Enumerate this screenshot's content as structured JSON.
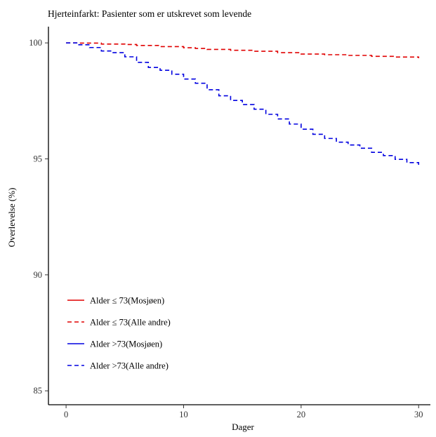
{
  "chart_data": {
    "type": "line",
    "title": "Hjerteinfarkt: Pasienter som er utskrevet som levende",
    "xlabel": "Dager",
    "ylabel": "Overlevelse (%)",
    "xlim": [
      -1.5,
      31
    ],
    "ylim": [
      84.4,
      100.7
    ],
    "xticks": [
      0,
      10,
      20,
      30
    ],
    "yticks": [
      85,
      90,
      95,
      100
    ],
    "grid": false,
    "legend_position": "bottom-left",
    "series": [
      {
        "name": "Alder ≤ 73(Mosjøen)",
        "color": "#e00000",
        "line_style": "solid",
        "x": [],
        "y": []
      },
      {
        "name": "Alder ≤ 73(Alle andre)",
        "color": "#e00000",
        "line_style": "dashed",
        "x": [
          0,
          1,
          3,
          5,
          6,
          8,
          10,
          11,
          12,
          14,
          16,
          18,
          20,
          22,
          24,
          26,
          28,
          30
        ],
        "y": [
          100,
          99.99,
          99.95,
          99.93,
          99.89,
          99.84,
          99.79,
          99.76,
          99.72,
          99.68,
          99.64,
          99.58,
          99.52,
          99.49,
          99.46,
          99.42,
          99.39,
          99.34
        ]
      },
      {
        "name": "Alder >73(Mosjøen)",
        "color": "#0000e0",
        "line_style": "solid",
        "x": [],
        "y": []
      },
      {
        "name": "Alder >73(Alle andre)",
        "color": "#0000e0",
        "line_style": "dashed",
        "x": [
          0,
          1,
          2,
          3,
          4,
          5,
          6,
          7,
          8,
          9,
          10,
          11,
          12,
          13,
          14,
          15,
          16,
          17,
          18,
          19,
          20,
          21,
          22,
          23,
          24,
          25,
          26,
          27,
          28,
          29,
          30
        ],
        "y": [
          100,
          99.92,
          99.8,
          99.65,
          99.58,
          99.4,
          99.16,
          98.94,
          98.82,
          98.65,
          98.44,
          98.26,
          97.98,
          97.72,
          97.52,
          97.34,
          97.14,
          96.92,
          96.72,
          96.5,
          96.28,
          96.06,
          95.88,
          95.72,
          95.6,
          95.46,
          95.28,
          95.14,
          94.98,
          94.84,
          94.72
        ]
      }
    ]
  }
}
